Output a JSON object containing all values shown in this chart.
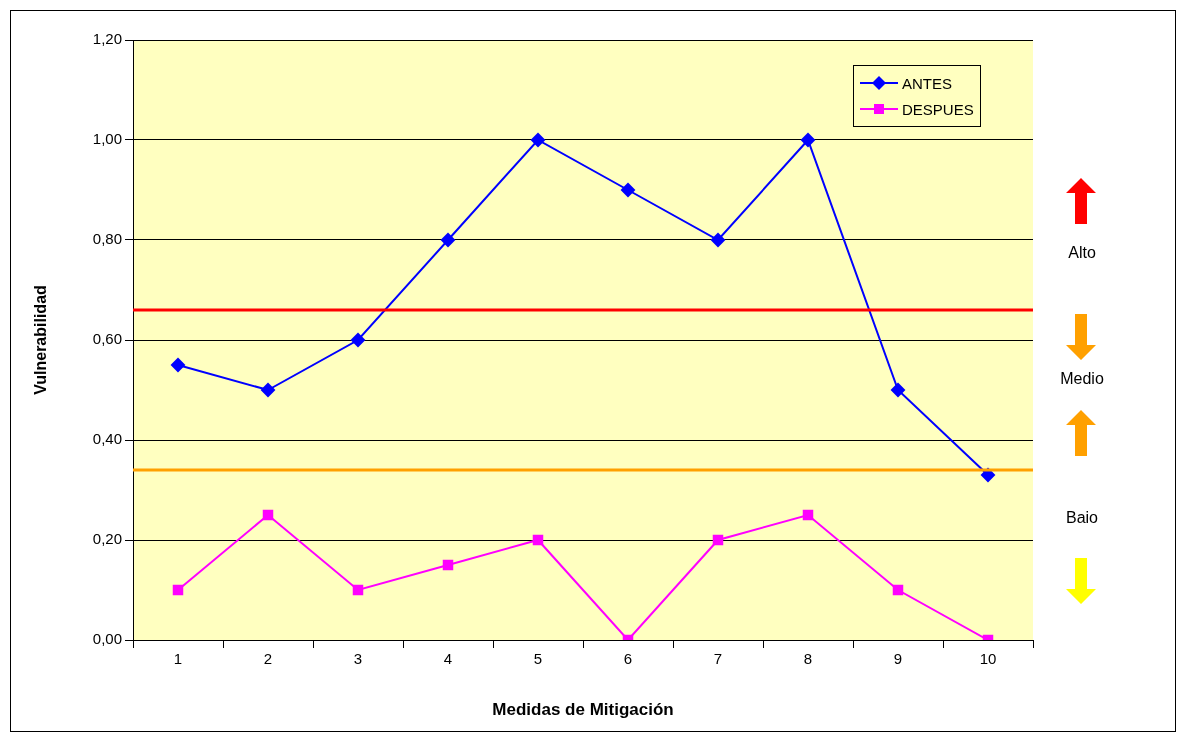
{
  "chart_data": {
    "type": "line",
    "xlabel": "Medidas de Mitigación",
    "ylabel": "Vulnerabilidad",
    "categories": [
      "1",
      "2",
      "3",
      "4",
      "5",
      "6",
      "7",
      "8",
      "9",
      "10"
    ],
    "series": [
      {
        "name": "ANTES",
        "color": "#0000ff",
        "marker": "diamond",
        "values": [
          0.55,
          0.5,
          0.6,
          0.8,
          1.0,
          0.9,
          0.8,
          1.0,
          0.5,
          0.33
        ]
      },
      {
        "name": "DESPUES",
        "color": "#ff00ff",
        "marker": "square",
        "values": [
          0.1,
          0.25,
          0.1,
          0.15,
          0.2,
          0.0,
          0.2,
          0.25,
          0.1,
          0.0
        ]
      }
    ],
    "ylim": [
      0,
      1.2
    ],
    "yticks": [
      {
        "value": 0,
        "label": "0,00"
      },
      {
        "value": 0.2,
        "label": "0,20"
      },
      {
        "value": 0.4,
        "label": "0,40"
      },
      {
        "value": 0.6,
        "label": "0,60"
      },
      {
        "value": 0.8,
        "label": "0,80"
      },
      {
        "value": 1.0,
        "label": "1,00"
      },
      {
        "value": 1.2,
        "label": "1,20"
      }
    ],
    "ref_lines": [
      {
        "axis": "y",
        "value": 0.66,
        "color": "#ff0000"
      },
      {
        "axis": "y",
        "value": 0.34,
        "color": "#ffa000"
      }
    ],
    "annotations": [
      "Alto",
      "Medio",
      "Baio"
    ],
    "grid": "y",
    "legend": "top right",
    "line_style": "solid"
  }
}
